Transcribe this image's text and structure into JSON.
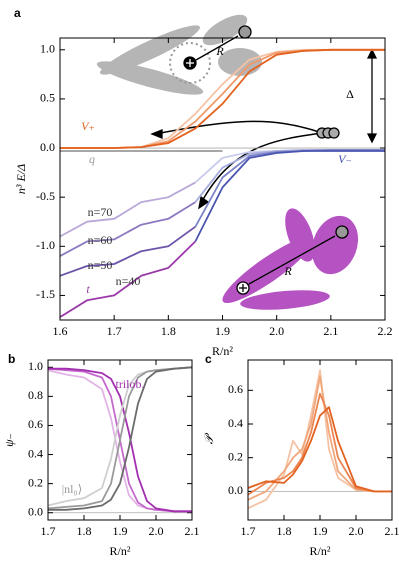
{
  "chart_data": [
    {
      "type": "line",
      "panel": "a",
      "xlabel": "R/n²",
      "ylabel": "n³ E/Δ",
      "x": [
        1.6,
        1.65,
        1.7,
        1.75,
        1.8,
        1.85,
        1.9,
        1.95,
        2.0,
        2.05,
        2.1,
        2.15,
        2.2
      ],
      "xlim": [
        1.6,
        2.2
      ],
      "ylim": [
        -1.75,
        1.12
      ],
      "xticks": [
        1.6,
        1.7,
        1.8,
        1.9,
        {
          "value": 2.0,
          "label": "2.0"
        },
        2.1,
        2.2
      ],
      "yticks": [
        -1.5,
        {
          "value": -1.0,
          "label": "-1.0"
        },
        -0.5,
        {
          "value": 0.0,
          "label": "0.0"
        },
        0.5,
        {
          "value": 1.0,
          "label": "1.0"
        }
      ],
      "series": [
        {
          "color": "#f6c2a4",
          "values": [
            0,
            0,
            0,
            0.01,
            0.1,
            0.35,
            0.65,
            0.9,
            0.98,
            1,
            1,
            1,
            1
          ]
        },
        {
          "color": "#ef9a6b",
          "values": [
            0,
            0,
            0,
            0.01,
            0.07,
            0.27,
            0.55,
            0.85,
            0.97,
            0.99,
            1,
            1,
            1
          ]
        },
        {
          "color": "#e3621f",
          "values": [
            0,
            0,
            0,
            0.01,
            0.05,
            0.2,
            0.45,
            0.78,
            0.95,
            0.99,
            1,
            1,
            1
          ]
        },
        {
          "color": "#999999",
          "values": [
            -0.03,
            -0.03,
            -0.03,
            -0.03,
            -0.03,
            -0.03,
            -0.03,
            null,
            null,
            null,
            null,
            null,
            null
          ]
        },
        {
          "color": "#b9a8d8",
          "values": [
            -0.9,
            -0.75,
            -0.72,
            -0.55,
            -0.5,
            -0.35,
            null,
            null,
            null,
            null,
            null,
            null,
            null
          ]
        },
        {
          "color": "#8c79c0",
          "values": [
            -1.1,
            -0.95,
            -0.93,
            -0.78,
            -0.72,
            -0.55,
            null,
            null,
            null,
            null,
            null,
            null,
            null
          ]
        },
        {
          "color": "#6c54a8",
          "values": [
            -1.3,
            -1.2,
            -1.18,
            -1.05,
            -1.0,
            -0.8,
            null,
            null,
            null,
            null,
            null,
            null,
            null
          ]
        },
        {
          "color": "#9a3aa8",
          "values": [
            -1.72,
            -1.55,
            -1.5,
            -1.3,
            -1.22,
            -0.95,
            null,
            null,
            null,
            null,
            null,
            null,
            null
          ]
        },
        {
          "color": "#c8cbea",
          "values": [
            null,
            null,
            null,
            null,
            null,
            -0.35,
            -0.1,
            -0.04,
            -0.03,
            -0.02,
            -0.02,
            -0.02,
            -0.02
          ]
        },
        {
          "color": "#a6acdc",
          "values": [
            null,
            null,
            null,
            null,
            null,
            -0.55,
            -0.2,
            -0.06,
            -0.03,
            -0.02,
            -0.02,
            -0.02,
            -0.02
          ]
        },
        {
          "color": "#7b83c8",
          "values": [
            null,
            null,
            null,
            null,
            null,
            -0.8,
            -0.3,
            -0.08,
            -0.04,
            -0.03,
            -0.02,
            -0.02,
            -0.02
          ]
        },
        {
          "color": "#4a55b0",
          "values": [
            null,
            null,
            null,
            null,
            null,
            -0.95,
            -0.4,
            -0.1,
            -0.05,
            -0.03,
            -0.03,
            -0.03,
            -0.03
          ]
        }
      ],
      "annotations": [
        "V₊",
        "q",
        "V₋",
        "t",
        "n=70",
        "n=60",
        "n=50",
        "n=40",
        "Δ",
        "R",
        "R"
      ]
    },
    {
      "type": "line",
      "panel": "b",
      "xlabel": "R/n²",
      "ylabel": "ψ₋",
      "x": [
        1.7,
        1.75,
        1.8,
        1.85,
        1.875,
        1.9,
        1.925,
        1.95,
        1.975,
        2.0,
        2.05,
        2.1
      ],
      "xlim": [
        1.7,
        2.1
      ],
      "ylim": [
        -0.05,
        1.05
      ],
      "xticks": [
        1.7,
        1.8,
        1.9,
        {
          "value": 2.0,
          "label": "2.0"
        },
        2.1
      ],
      "yticks": [
        {
          "value": 0.0,
          "label": "0.0"
        },
        0.2,
        0.4,
        0.6,
        0.8,
        {
          "value": 1.0,
          "label": "1.0"
        }
      ],
      "series": [
        {
          "color": "#e2b3e6",
          "values": [
            0.98,
            0.95,
            0.93,
            0.85,
            0.65,
            0.35,
            0.12,
            0.05,
            0.03,
            0.02,
            0.01,
            0.01
          ]
        },
        {
          "color": "#c46acd",
          "values": [
            0.99,
            0.98,
            0.97,
            0.93,
            0.8,
            0.5,
            0.2,
            0.07,
            0.03,
            0.02,
            0.01,
            0.01
          ]
        },
        {
          "color": "#a32fb0",
          "values": [
            0.99,
            0.99,
            0.98,
            0.96,
            0.92,
            0.8,
            0.55,
            0.25,
            0.08,
            0.03,
            0.01,
            0.01
          ]
        },
        {
          "color": "#cfcfcf",
          "values": [
            0.05,
            0.08,
            0.1,
            0.17,
            0.37,
            0.67,
            0.88,
            0.95,
            0.97,
            0.98,
            0.99,
            1.0
          ]
        },
        {
          "color": "#9a9a9a",
          "values": [
            0.03,
            0.04,
            0.05,
            0.08,
            0.2,
            0.5,
            0.8,
            0.93,
            0.97,
            0.98,
            0.99,
            1.0
          ]
        },
        {
          "color": "#6b6b6b",
          "values": [
            0.02,
            0.02,
            0.03,
            0.05,
            0.09,
            0.2,
            0.45,
            0.75,
            0.92,
            0.97,
            0.99,
            1.0
          ]
        }
      ],
      "annotations": [
        "trilob.",
        "|nl₀⟩"
      ]
    },
    {
      "type": "line",
      "panel": "c",
      "xlabel": "R/n²",
      "ylabel": "𝒫",
      "x": [
        1.7,
        1.75,
        1.8,
        1.825,
        1.85,
        1.875,
        1.9,
        1.925,
        1.95,
        2.0,
        2.05,
        2.1
      ],
      "xlim": [
        1.7,
        2.1
      ],
      "ylim": [
        -0.17,
        0.78
      ],
      "xticks": [
        1.7,
        1.8,
        1.9,
        {
          "value": 2.0,
          "label": "2.0"
        },
        2.1
      ],
      "yticks": [
        {
          "value": 0.0,
          "label": "0.0"
        },
        0.2,
        0.4,
        0.6
      ],
      "series": [
        {
          "color": "#f6c2a4",
          "values": [
            -0.1,
            -0.05,
            0.1,
            0.3,
            0.22,
            0.45,
            0.72,
            0.25,
            0.08,
            0.01,
            0,
            0
          ]
        },
        {
          "color": "#f1a77c",
          "values": [
            -0.05,
            0,
            0.12,
            0.2,
            0.25,
            0.4,
            0.68,
            0.35,
            0.12,
            0.01,
            0,
            0
          ]
        },
        {
          "color": "#ea8450",
          "values": [
            -0.02,
            0.05,
            0.08,
            0.12,
            0.2,
            0.35,
            0.58,
            0.45,
            0.2,
            0.02,
            0,
            0
          ]
        },
        {
          "color": "#e3621f",
          "values": [
            0.02,
            0.06,
            0.05,
            0.1,
            0.18,
            0.3,
            0.45,
            0.5,
            0.3,
            0.03,
            0,
            0
          ]
        }
      ],
      "annotations": []
    }
  ]
}
